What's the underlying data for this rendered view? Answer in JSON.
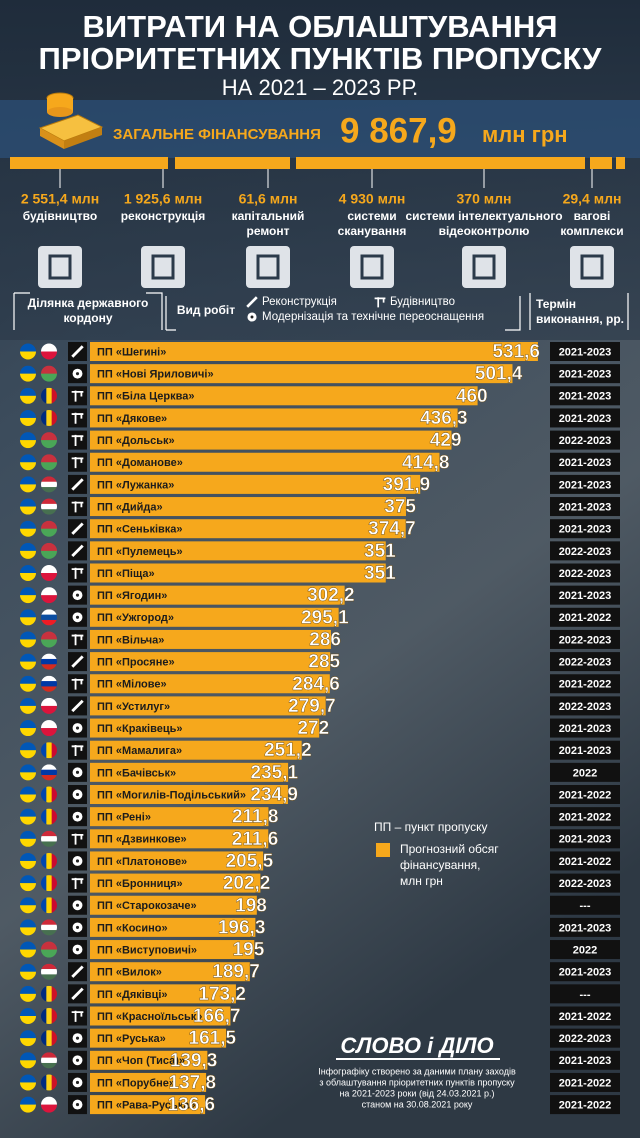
{
  "header": {
    "title_lines": [
      "ВИТРАТИ НА ОБЛАШТУВАННЯ",
      "ПРІОРИТЕТНИХ ПУНКТІВ ПРОПУСКУ"
    ],
    "subtitle": "НА 2021 – 2023 РР.",
    "total_label": "ЗАГАЛЬНЕ ФІНАНСУВАННЯ",
    "total_value": "9 867,9",
    "total_unit": "млн грн"
  },
  "breakdown": [
    {
      "amount": "2 551,4 млн",
      "label": [
        "будівництво"
      ]
    },
    {
      "amount": "1 925,6 млн",
      "label": [
        "реконструкція"
      ]
    },
    {
      "amount": "61,6 млн",
      "label": [
        "капітальний",
        "ремонт"
      ]
    },
    {
      "amount": "4 930 млн",
      "label": [
        "системи",
        "сканування"
      ]
    },
    {
      "amount": "370 млн",
      "label": [
        "системи інтелектуального",
        "відеоконтролю"
      ]
    },
    {
      "amount": "29,4 млн",
      "label": [
        "вагові",
        "комплекси"
      ]
    }
  ],
  "columns": {
    "border": [
      "Ділянка державного",
      "кордону"
    ],
    "work": "Вид робіт",
    "term": [
      "Термін",
      "виконання, рр."
    ]
  },
  "work_types": [
    "Реконструкція",
    "Будівництво",
    "Модернізація та технічне переоснащення"
  ],
  "chart_data": {
    "type": "bar",
    "orientation": "horizontal",
    "color": "#f6a81c",
    "xlim": [
      0,
      540
    ],
    "categories": [
      "ПП «Шегині»",
      "ПП «Нові Яриловичі»",
      "ПП «Біла Церква»",
      "ПП «Дякове»",
      "ПП «Дольськ»",
      "ПП «Доманове»",
      "ПП «Лужанка»",
      "ПП «Дийда»",
      "ПП «Сеньківка»",
      "ПП «Пулемець»",
      "ПП «Піща»",
      "ПП «Ягодин»",
      "ПП «Ужгород»",
      "ПП «Вільча»",
      "ПП «Просяне»",
      "ПП «Мілове»",
      "ПП «Устилуг»",
      "ПП «Краківець»",
      "ПП «Мамалига»",
      "ПП «Бачівськ»",
      "ПП «Могилів-Подільський»",
      "ПП «Рені»",
      "ПП «Дзвинкове»",
      "ПП «Платонове»",
      "ПП «Бронниця»",
      "ПП «Старокозаче»",
      "ПП «Косино»",
      "ПП «Виступовичі»",
      "ПП «Вилок»",
      "ПП «Дяківці»",
      "ПП «Красноїльськ»",
      "ПП «Руська»",
      "ПП «Чоп (Тиса)»",
      "ПП «Порубне»",
      "ПП «Рава-Руська»"
    ],
    "values": [
      531.6,
      501.4,
      460,
      436.3,
      429,
      414.8,
      391.9,
      375,
      374.7,
      351,
      351,
      302.2,
      295.1,
      286,
      285,
      284.6,
      279.7,
      272,
      251.2,
      235.1,
      234.9,
      211.8,
      211.6,
      205.5,
      202.2,
      198,
      196.3,
      195,
      189.7,
      173.2,
      166.7,
      161.5,
      139.3,
      137.8,
      136.6
    ],
    "value_labels": [
      "531,6",
      "501,4",
      "460",
      "436,3",
      "429",
      "414,8",
      "391,9",
      "375",
      "374,7",
      "351",
      "351",
      "302,2",
      "295,1",
      "286",
      "285",
      "284,6",
      "279,7",
      "272",
      "251,2",
      "235,1",
      "234,9",
      "211,8",
      "211,6",
      "205,5",
      "202,2",
      "198",
      "196,3",
      "195",
      "189,7",
      "173,2",
      "166,7",
      "161,5",
      "139,3",
      "137,8",
      "136,6"
    ],
    "work": [
      0,
      2,
      1,
      1,
      1,
      1,
      0,
      1,
      0,
      0,
      1,
      2,
      2,
      1,
      0,
      1,
      0,
      2,
      1,
      2,
      2,
      2,
      1,
      2,
      1,
      2,
      2,
      2,
      0,
      0,
      1,
      2,
      2,
      2,
      2
    ],
    "periods": [
      "2021-2023",
      "2021-2023",
      "2021-2023",
      "2021-2023",
      "2022-2023",
      "2021-2023",
      "2021-2023",
      "2021-2023",
      "2021-2023",
      "2022-2023",
      "2022-2023",
      "2021-2023",
      "2021-2022",
      "2022-2023",
      "2022-2023",
      "2021-2022",
      "2022-2023",
      "2021-2023",
      "2021-2023",
      "2022",
      "2021-2022",
      "2021-2022",
      "2021-2023",
      "2021-2022",
      "2022-2023",
      "---",
      "2021-2023",
      "2022",
      "2021-2023",
      "---",
      "2021-2022",
      "2022-2023",
      "2021-2023",
      "2021-2022",
      "2021-2022"
    ],
    "flags": [
      {
        "colors": [
          "#ffffff",
          "#dc143c"
        ],
        "stripes": "horizontal"
      },
      {
        "colors": [
          "#c8313e",
          "#4aa657"
        ],
        "stripes": "horizontal"
      },
      {
        "colors": [
          "#002b7f",
          "#fcd116",
          "#ce1126"
        ],
        "stripes": "vertical"
      },
      {
        "colors": [
          "#002b7f",
          "#fcd116",
          "#ce1126"
        ],
        "stripes": "vertical"
      },
      {
        "colors": [
          "#c8313e",
          "#4aa657"
        ],
        "stripes": "horizontal"
      },
      {
        "colors": [
          "#c8313e",
          "#4aa657"
        ],
        "stripes": "horizontal"
      },
      {
        "colors": [
          "#ce2939",
          "#ffffff",
          "#477050"
        ],
        "stripes": "horizontal"
      },
      {
        "colors": [
          "#ce2939",
          "#ffffff",
          "#477050"
        ],
        "stripes": "horizontal"
      },
      {
        "colors": [
          "#c8313e",
          "#4aa657"
        ],
        "stripes": "horizontal"
      },
      {
        "colors": [
          "#c8313e",
          "#4aa657"
        ],
        "stripes": "horizontal"
      },
      {
        "colors": [
          "#ffffff",
          "#dc143c"
        ],
        "stripes": "horizontal"
      },
      {
        "colors": [
          "#ffffff",
          "#dc143c"
        ],
        "stripes": "horizontal"
      },
      {
        "colors": [
          "#ffffff",
          "#0b4ea2",
          "#ee1c25"
        ],
        "stripes": "horizontal"
      },
      {
        "colors": [
          "#c8313e",
          "#4aa657"
        ],
        "stripes": "horizontal"
      },
      {
        "colors": [
          "#ffffff",
          "#0039a6",
          "#d52b1e"
        ],
        "stripes": "horizontal"
      },
      {
        "colors": [
          "#ffffff",
          "#0039a6",
          "#d52b1e"
        ],
        "stripes": "horizontal"
      },
      {
        "colors": [
          "#ffffff",
          "#dc143c"
        ],
        "stripes": "horizontal"
      },
      {
        "colors": [
          "#ffffff",
          "#dc143c"
        ],
        "stripes": "horizontal"
      },
      {
        "colors": [
          "#0046ae",
          "#ffd200",
          "#cc092f"
        ],
        "stripes": "vertical"
      },
      {
        "colors": [
          "#ffffff",
          "#0039a6",
          "#d52b1e"
        ],
        "stripes": "horizontal"
      },
      {
        "colors": [
          "#0046ae",
          "#ffd200",
          "#cc092f"
        ],
        "stripes": "vertical"
      },
      {
        "colors": [
          "#0046ae",
          "#ffd200",
          "#cc092f"
        ],
        "stripes": "vertical"
      },
      {
        "colors": [
          "#ce2939",
          "#ffffff",
          "#477050"
        ],
        "stripes": "horizontal"
      },
      {
        "colors": [
          "#0046ae",
          "#ffd200",
          "#cc092f"
        ],
        "stripes": "vertical"
      },
      {
        "colors": [
          "#0046ae",
          "#ffd200",
          "#cc092f"
        ],
        "stripes": "vertical"
      },
      {
        "colors": [
          "#0046ae",
          "#ffd200",
          "#cc092f"
        ],
        "stripes": "vertical"
      },
      {
        "colors": [
          "#ce2939",
          "#ffffff",
          "#477050"
        ],
        "stripes": "horizontal"
      },
      {
        "colors": [
          "#c8313e",
          "#4aa657"
        ],
        "stripes": "horizontal"
      },
      {
        "colors": [
          "#ce2939",
          "#ffffff",
          "#477050"
        ],
        "stripes": "horizontal"
      },
      {
        "colors": [
          "#002b7f",
          "#fcd116",
          "#ce1126"
        ],
        "stripes": "vertical"
      },
      {
        "colors": [
          "#002b7f",
          "#fcd116",
          "#ce1126"
        ],
        "stripes": "vertical"
      },
      {
        "colors": [
          "#002b7f",
          "#fcd116",
          "#ce1126"
        ],
        "stripes": "vertical"
      },
      {
        "colors": [
          "#ce2939",
          "#ffffff",
          "#477050"
        ],
        "stripes": "horizontal"
      },
      {
        "colors": [
          "#002b7f",
          "#fcd116",
          "#ce1126"
        ],
        "stripes": "vertical"
      },
      {
        "colors": [
          "#ffffff",
          "#dc143c"
        ],
        "stripes": "horizontal"
      }
    ]
  },
  "side_legend": {
    "abbr": "ПП – пункт пропуску",
    "series_label": [
      "Прогнозний обсяг",
      "фінансування,",
      "млн грн"
    ]
  },
  "logo": "СЛОВО і ДІЛО",
  "footnote": [
    "Інфографіку створено за даними плану заходів",
    "з облаштування пріоритетних пунктів пропуску",
    "на 2021-2023 роки (від 24.03.2021 р.)",
    "станом на 30.08.2021 року"
  ]
}
